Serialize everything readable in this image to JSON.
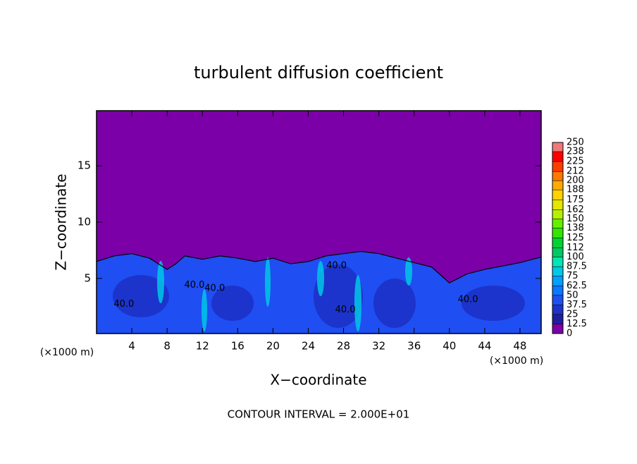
{
  "chart_data": {
    "type": "contour",
    "title": "turbulent diffusion coefficient",
    "xlabel": "X−coordinate",
    "ylabel": "Z−coordinate",
    "x_unit_label": "(×1000 m)",
    "footer": "CONTOUR INTERVAL = 2.000E+01",
    "xlim": [
      0,
      50.4
    ],
    "ylim": [
      0.1,
      19.9
    ],
    "xticks": [
      4,
      8,
      12,
      16,
      20,
      24,
      28,
      32,
      36,
      40,
      44,
      48
    ],
    "yticks": [
      5,
      10,
      15
    ],
    "background_color": "#7b00a8",
    "field_color": "#1f4ef2",
    "boundary": {
      "x": [
        0,
        2,
        4,
        6,
        8,
        9,
        10,
        12,
        14,
        16,
        18,
        20,
        22,
        24,
        26,
        28,
        30,
        32,
        34,
        36,
        38,
        40,
        42,
        44,
        46,
        48,
        50.4
      ],
      "z": [
        6.5,
        7.0,
        7.2,
        6.8,
        5.8,
        6.3,
        7.0,
        6.7,
        7.0,
        6.8,
        6.5,
        6.8,
        6.3,
        6.5,
        7.0,
        7.2,
        7.4,
        7.2,
        6.8,
        6.4,
        6.0,
        4.6,
        5.4,
        5.8,
        6.1,
        6.4,
        6.9
      ]
    },
    "contour_labels": [
      {
        "x": 11.1,
        "z": 4.4,
        "value": 40,
        "label": "40.0"
      },
      {
        "x": 13.4,
        "z": 4.1,
        "value": 40,
        "label": "40.0"
      },
      {
        "x": 3.1,
        "z": 2.7,
        "value": 40,
        "label": "40.0"
      },
      {
        "x": 27.2,
        "z": 6.1,
        "value": 40,
        "label": "40.0"
      },
      {
        "x": 28.2,
        "z": 2.2,
        "value": 40,
        "label": "40.0"
      },
      {
        "x": 42.1,
        "z": 3.1,
        "value": 40,
        "label": "40.0"
      }
    ],
    "colorbar": {
      "levels": [
        0,
        12.5,
        25,
        37.5,
        50,
        62.5,
        75,
        87.5,
        100,
        112,
        125,
        138,
        150,
        162,
        175,
        188,
        200,
        212,
        225,
        238,
        250
      ],
      "colors": [
        "#7b00a8",
        "#1e1ea0",
        "#1e32c8",
        "#1e50f0",
        "#0a78ff",
        "#00a0ff",
        "#00c8e6",
        "#00e6b4",
        "#00c864",
        "#00d232",
        "#32e600",
        "#64f000",
        "#b4f000",
        "#e6e600",
        "#ffd200",
        "#ffaa00",
        "#ff7800",
        "#ff3c00",
        "#ff0000",
        "#f07878"
      ]
    }
  }
}
